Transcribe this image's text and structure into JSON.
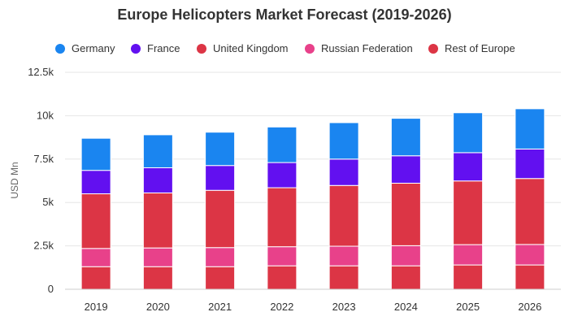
{
  "chart_data": {
    "type": "bar",
    "stacked": true,
    "title": "Europe Helicopters Market Forecast (2019-2026)",
    "xlabel": "",
    "ylabel": "USD Mn",
    "ylim": [
      0,
      12500
    ],
    "yticks": [
      0,
      2500,
      5000,
      7500,
      10000,
      12500
    ],
    "ytick_labels": [
      "0",
      "2.5k",
      "5k",
      "7.5k",
      "10k",
      "12.5k"
    ],
    "grid": true,
    "legend_position": "top",
    "categories": [
      "2019",
      "2020",
      "2021",
      "2022",
      "2023",
      "2024",
      "2025",
      "2026"
    ],
    "series": [
      {
        "name": "Rest of Europe",
        "color": "#dc3545",
        "values": [
          1300,
          1300,
          1300,
          1350,
          1350,
          1350,
          1400,
          1400
        ]
      },
      {
        "name": "Russian Federation",
        "color": "#e8418a",
        "values": [
          1050,
          1080,
          1100,
          1100,
          1130,
          1160,
          1170,
          1180
        ]
      },
      {
        "name": "United Kingdom",
        "color": "#dc3545",
        "values": [
          3150,
          3170,
          3300,
          3400,
          3500,
          3600,
          3670,
          3800
        ]
      },
      {
        "name": "France",
        "color": "#6210f0",
        "values": [
          1350,
          1450,
          1430,
          1450,
          1520,
          1580,
          1630,
          1700
        ]
      },
      {
        "name": "Germany",
        "color": "#1a85f0",
        "values": [
          1850,
          1900,
          1920,
          2050,
          2100,
          2160,
          2300,
          2320
        ]
      }
    ]
  },
  "legend": [
    {
      "label": "Germany",
      "color": "#1a85f0"
    },
    {
      "label": "France",
      "color": "#6210f0"
    },
    {
      "label": "United Kingdom",
      "color": "#dc3545"
    },
    {
      "label": "Russian Federation",
      "color": "#e8418a"
    },
    {
      "label": "Rest of Europe",
      "color": "#dc3545"
    }
  ]
}
